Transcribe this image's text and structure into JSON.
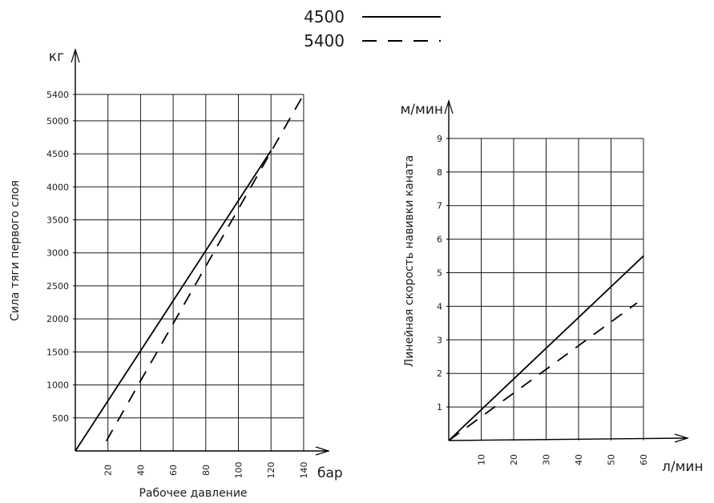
{
  "legend": [
    {
      "label": "4500",
      "style": "solid"
    },
    {
      "label": "5400",
      "style": "dashed"
    }
  ],
  "chart_data": [
    {
      "type": "line",
      "ylabel": "Сила тяги первого слоя",
      "yunit": "кг",
      "xlabel": "Рабочее давление",
      "xunit": "бар",
      "xlim": [
        0,
        140
      ],
      "ylim": [
        0,
        5400
      ],
      "xticks": [
        20,
        40,
        60,
        80,
        100,
        120,
        140
      ],
      "yticks": [
        500,
        1000,
        1500,
        2000,
        2500,
        3000,
        3500,
        4000,
        4500,
        5000,
        5400
      ],
      "grid": true,
      "series": [
        {
          "name": "4500",
          "style": "solid",
          "x": [
            0,
            120
          ],
          "y": [
            0,
            4550
          ]
        },
        {
          "name": "5400",
          "style": "dashed",
          "x": [
            19,
            140
          ],
          "y": [
            150,
            5400
          ]
        }
      ]
    },
    {
      "type": "line",
      "ylabel": "Линейная скорость навивки каната",
      "yunit": "м/мин",
      "xlabel": "",
      "xunit": "л/мин",
      "xlim": [
        0,
        60
      ],
      "ylim": [
        0,
        9
      ],
      "xticks": [
        10,
        20,
        30,
        40,
        50,
        60
      ],
      "yticks": [
        1,
        2,
        3,
        4,
        5,
        6,
        7,
        8,
        9
      ],
      "grid": true,
      "series": [
        {
          "name": "4500",
          "style": "solid",
          "x": [
            0,
            60
          ],
          "y": [
            0,
            5.5
          ]
        },
        {
          "name": "5400",
          "style": "dashed",
          "x": [
            0,
            58
          ],
          "y": [
            0,
            4.1
          ]
        }
      ]
    }
  ]
}
